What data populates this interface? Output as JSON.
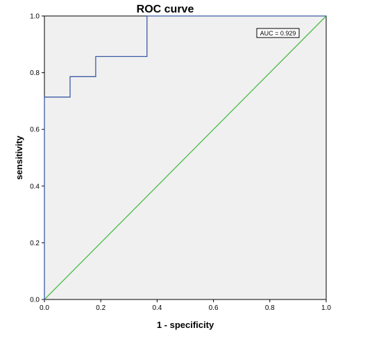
{
  "chart_data": {
    "type": "line",
    "title": "ROC  curve",
    "xlabel": "1 - specificity",
    "ylabel": "sensitivity",
    "xlim": [
      0.0,
      1.0
    ],
    "ylim": [
      0.0,
      1.0
    ],
    "x_ticks": [
      "0.0",
      "0.2",
      "0.4",
      "0.6",
      "0.8",
      "1.0"
    ],
    "y_ticks": [
      "0.0",
      "0.2",
      "0.4",
      "0.6",
      "0.8",
      "1.0"
    ],
    "grid": false,
    "annotation": "AUC = 0.929",
    "colors": {
      "plot_background": "#f0f0f0",
      "roc_line": "#3b5ba5",
      "reference_line": "#4cbb4c"
    },
    "series": [
      {
        "x": [
          0.0,
          0.0,
          0.091,
          0.091,
          0.182,
          0.182,
          0.364,
          0.364,
          1.0
        ],
        "y": [
          0.0,
          0.714,
          0.714,
          0.786,
          0.786,
          0.857,
          0.857,
          1.0,
          1.0
        ]
      },
      {
        "x": [
          0.0,
          1.0
        ],
        "y": [
          0.0,
          1.0
        ]
      }
    ]
  }
}
